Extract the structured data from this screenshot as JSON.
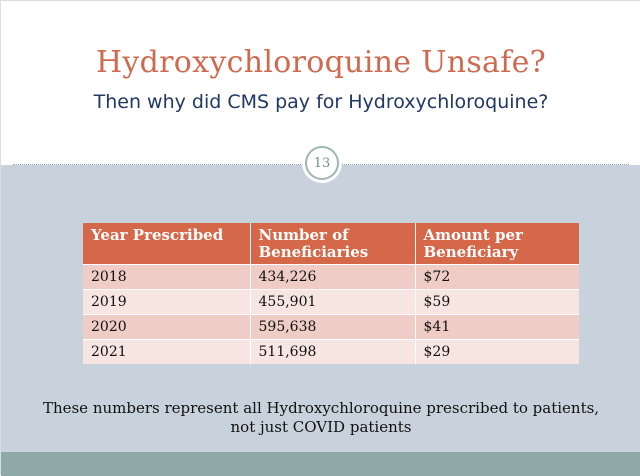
{
  "slide": {
    "title": "Hydroxychloroquine Unsafe?",
    "subtitle": "Then why did CMS pay for Hydroxychloroquine?",
    "page_number": "13"
  },
  "table": {
    "headers": [
      "Year Prescribed",
      "Number of Beneficiaries",
      "Amount per Beneficiary"
    ],
    "rows": [
      [
        "2018",
        "434,226",
        "$72"
      ],
      [
        "2019",
        "455,901",
        "$59"
      ],
      [
        "2020",
        "595,638",
        "$41"
      ],
      [
        "2021",
        "511,698",
        "$29"
      ]
    ]
  },
  "note": {
    "line1": "These numbers represent all Hydroxychloroquine prescribed to patients,",
    "line2": "not just COVID patients"
  },
  "colors": {
    "title": "#cf6a4f",
    "subtitle": "#1f3864",
    "header_bg": "#d46849",
    "row_odd": "#efcdc6",
    "row_even": "#f7e5e1",
    "lower_bg": "#c8d2dc",
    "footer_bar": "#8fa9a6"
  }
}
